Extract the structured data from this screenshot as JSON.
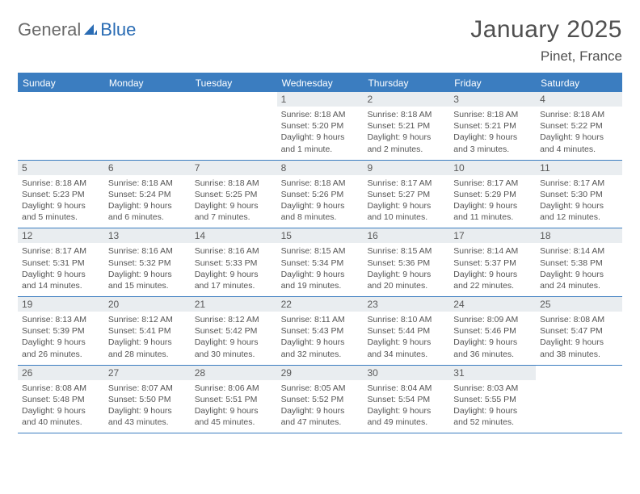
{
  "logo": {
    "general": "General",
    "blue": "Blue"
  },
  "header": {
    "title": "January 2025",
    "location": "Pinet, France"
  },
  "colors": {
    "brand_blue": "#3b7dc0",
    "logo_blue": "#2a6cb4",
    "logo_gray": "#6a6a6a",
    "date_bar_bg": "#e9edf0",
    "text": "#555555",
    "background": "#ffffff"
  },
  "dayHeaders": [
    "Sunday",
    "Monday",
    "Tuesday",
    "Wednesday",
    "Thursday",
    "Friday",
    "Saturday"
  ],
  "weeks": [
    [
      null,
      null,
      null,
      {
        "date": "1",
        "sunrise": "Sunrise: 8:18 AM",
        "sunset": "Sunset: 5:20 PM",
        "day1": "Daylight: 9 hours",
        "day2": "and 1 minute."
      },
      {
        "date": "2",
        "sunrise": "Sunrise: 8:18 AM",
        "sunset": "Sunset: 5:21 PM",
        "day1": "Daylight: 9 hours",
        "day2": "and 2 minutes."
      },
      {
        "date": "3",
        "sunrise": "Sunrise: 8:18 AM",
        "sunset": "Sunset: 5:21 PM",
        "day1": "Daylight: 9 hours",
        "day2": "and 3 minutes."
      },
      {
        "date": "4",
        "sunrise": "Sunrise: 8:18 AM",
        "sunset": "Sunset: 5:22 PM",
        "day1": "Daylight: 9 hours",
        "day2": "and 4 minutes."
      }
    ],
    [
      {
        "date": "5",
        "sunrise": "Sunrise: 8:18 AM",
        "sunset": "Sunset: 5:23 PM",
        "day1": "Daylight: 9 hours",
        "day2": "and 5 minutes."
      },
      {
        "date": "6",
        "sunrise": "Sunrise: 8:18 AM",
        "sunset": "Sunset: 5:24 PM",
        "day1": "Daylight: 9 hours",
        "day2": "and 6 minutes."
      },
      {
        "date": "7",
        "sunrise": "Sunrise: 8:18 AM",
        "sunset": "Sunset: 5:25 PM",
        "day1": "Daylight: 9 hours",
        "day2": "and 7 minutes."
      },
      {
        "date": "8",
        "sunrise": "Sunrise: 8:18 AM",
        "sunset": "Sunset: 5:26 PM",
        "day1": "Daylight: 9 hours",
        "day2": "and 8 minutes."
      },
      {
        "date": "9",
        "sunrise": "Sunrise: 8:17 AM",
        "sunset": "Sunset: 5:27 PM",
        "day1": "Daylight: 9 hours",
        "day2": "and 10 minutes."
      },
      {
        "date": "10",
        "sunrise": "Sunrise: 8:17 AM",
        "sunset": "Sunset: 5:29 PM",
        "day1": "Daylight: 9 hours",
        "day2": "and 11 minutes."
      },
      {
        "date": "11",
        "sunrise": "Sunrise: 8:17 AM",
        "sunset": "Sunset: 5:30 PM",
        "day1": "Daylight: 9 hours",
        "day2": "and 12 minutes."
      }
    ],
    [
      {
        "date": "12",
        "sunrise": "Sunrise: 8:17 AM",
        "sunset": "Sunset: 5:31 PM",
        "day1": "Daylight: 9 hours",
        "day2": "and 14 minutes."
      },
      {
        "date": "13",
        "sunrise": "Sunrise: 8:16 AM",
        "sunset": "Sunset: 5:32 PM",
        "day1": "Daylight: 9 hours",
        "day2": "and 15 minutes."
      },
      {
        "date": "14",
        "sunrise": "Sunrise: 8:16 AM",
        "sunset": "Sunset: 5:33 PM",
        "day1": "Daylight: 9 hours",
        "day2": "and 17 minutes."
      },
      {
        "date": "15",
        "sunrise": "Sunrise: 8:15 AM",
        "sunset": "Sunset: 5:34 PM",
        "day1": "Daylight: 9 hours",
        "day2": "and 19 minutes."
      },
      {
        "date": "16",
        "sunrise": "Sunrise: 8:15 AM",
        "sunset": "Sunset: 5:36 PM",
        "day1": "Daylight: 9 hours",
        "day2": "and 20 minutes."
      },
      {
        "date": "17",
        "sunrise": "Sunrise: 8:14 AM",
        "sunset": "Sunset: 5:37 PM",
        "day1": "Daylight: 9 hours",
        "day2": "and 22 minutes."
      },
      {
        "date": "18",
        "sunrise": "Sunrise: 8:14 AM",
        "sunset": "Sunset: 5:38 PM",
        "day1": "Daylight: 9 hours",
        "day2": "and 24 minutes."
      }
    ],
    [
      {
        "date": "19",
        "sunrise": "Sunrise: 8:13 AM",
        "sunset": "Sunset: 5:39 PM",
        "day1": "Daylight: 9 hours",
        "day2": "and 26 minutes."
      },
      {
        "date": "20",
        "sunrise": "Sunrise: 8:12 AM",
        "sunset": "Sunset: 5:41 PM",
        "day1": "Daylight: 9 hours",
        "day2": "and 28 minutes."
      },
      {
        "date": "21",
        "sunrise": "Sunrise: 8:12 AM",
        "sunset": "Sunset: 5:42 PM",
        "day1": "Daylight: 9 hours",
        "day2": "and 30 minutes."
      },
      {
        "date": "22",
        "sunrise": "Sunrise: 8:11 AM",
        "sunset": "Sunset: 5:43 PM",
        "day1": "Daylight: 9 hours",
        "day2": "and 32 minutes."
      },
      {
        "date": "23",
        "sunrise": "Sunrise: 8:10 AM",
        "sunset": "Sunset: 5:44 PM",
        "day1": "Daylight: 9 hours",
        "day2": "and 34 minutes."
      },
      {
        "date": "24",
        "sunrise": "Sunrise: 8:09 AM",
        "sunset": "Sunset: 5:46 PM",
        "day1": "Daylight: 9 hours",
        "day2": "and 36 minutes."
      },
      {
        "date": "25",
        "sunrise": "Sunrise: 8:08 AM",
        "sunset": "Sunset: 5:47 PM",
        "day1": "Daylight: 9 hours",
        "day2": "and 38 minutes."
      }
    ],
    [
      {
        "date": "26",
        "sunrise": "Sunrise: 8:08 AM",
        "sunset": "Sunset: 5:48 PM",
        "day1": "Daylight: 9 hours",
        "day2": "and 40 minutes."
      },
      {
        "date": "27",
        "sunrise": "Sunrise: 8:07 AM",
        "sunset": "Sunset: 5:50 PM",
        "day1": "Daylight: 9 hours",
        "day2": "and 43 minutes."
      },
      {
        "date": "28",
        "sunrise": "Sunrise: 8:06 AM",
        "sunset": "Sunset: 5:51 PM",
        "day1": "Daylight: 9 hours",
        "day2": "and 45 minutes."
      },
      {
        "date": "29",
        "sunrise": "Sunrise: 8:05 AM",
        "sunset": "Sunset: 5:52 PM",
        "day1": "Daylight: 9 hours",
        "day2": "and 47 minutes."
      },
      {
        "date": "30",
        "sunrise": "Sunrise: 8:04 AM",
        "sunset": "Sunset: 5:54 PM",
        "day1": "Daylight: 9 hours",
        "day2": "and 49 minutes."
      },
      {
        "date": "31",
        "sunrise": "Sunrise: 8:03 AM",
        "sunset": "Sunset: 5:55 PM",
        "day1": "Daylight: 9 hours",
        "day2": "and 52 minutes."
      },
      null
    ]
  ]
}
